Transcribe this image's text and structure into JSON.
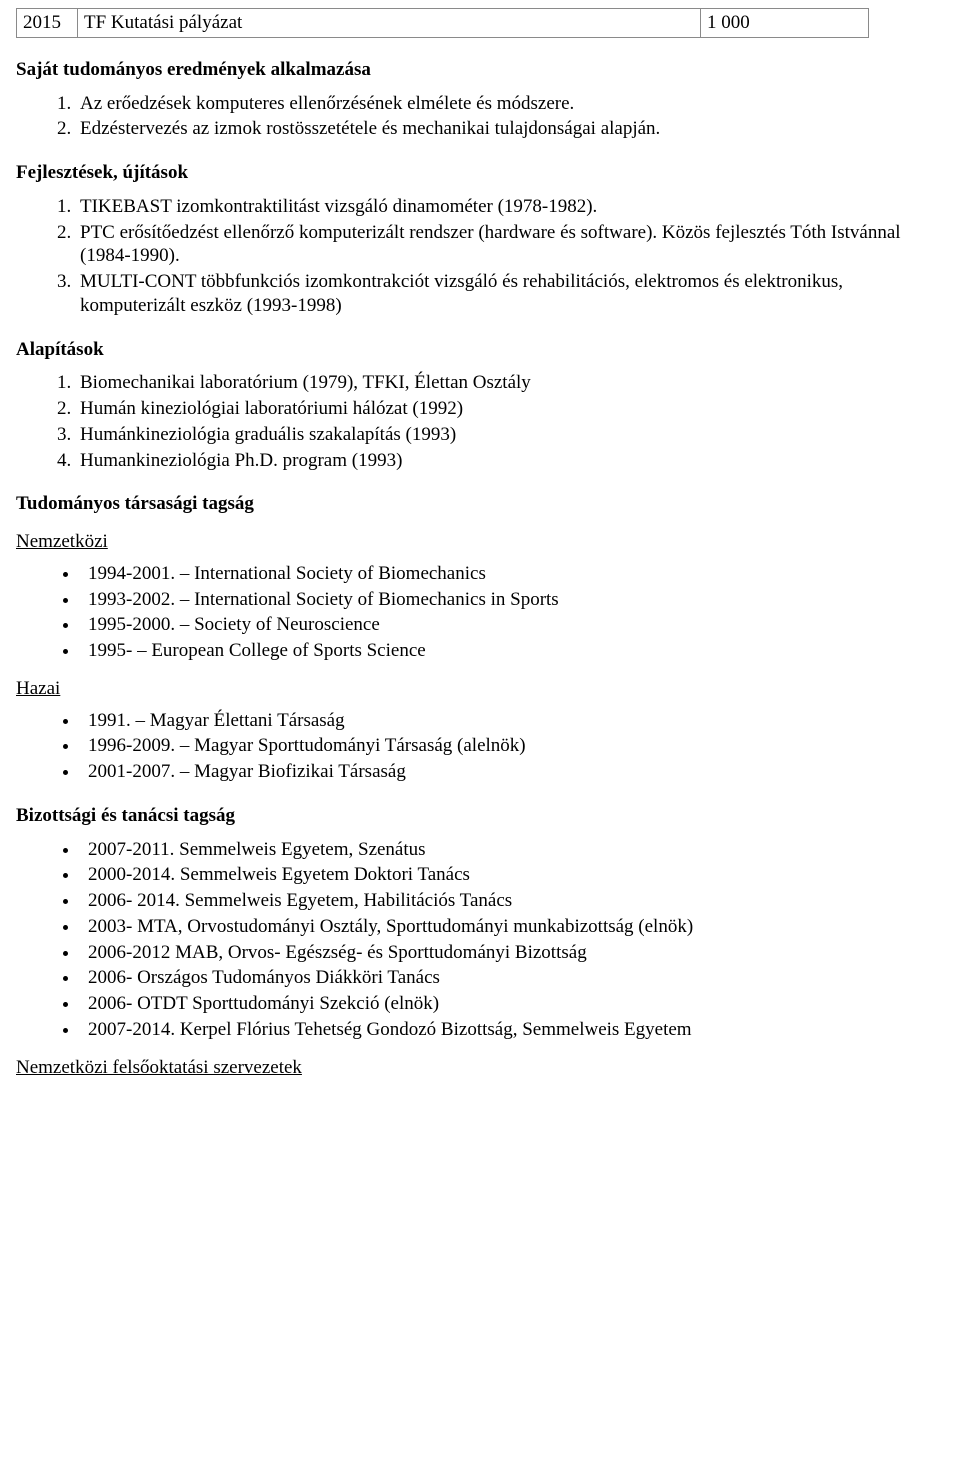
{
  "grant_table": {
    "year": "2015",
    "title": "TF Kutatási pályázat",
    "amount": "1 000"
  },
  "sections": {
    "results_title": "Saját tudományos eredmények alkalmazása",
    "results_items": [
      "Az erőedzések komputeres ellenőrzésének elmélete és módszere.",
      "Edzéstervezés az izmok rostösszetétele és mechanikai tulajdonságai alapján."
    ],
    "developments_title": "Fejlesztések, újítások",
    "developments_items": [
      "TIKEBAST izomkontraktilitást vizsgáló dinamométer (1978-1982).",
      "PTC erősítőedzést ellenőrző komputerizált rendszer (hardware és software). Közös fejlesztés Tóth Istvánnal (1984-1990).",
      "MULTI-CONT többfunkciós izomkontrakciót vizsgáló és rehabilitációs, elektromos és elektronikus, komputerizált eszköz (1993-1998)"
    ],
    "foundations_title": "Alapítások",
    "foundations_items": [
      "Biomechanikai laboratórium (1979), TFKI, Élettan Osztály",
      "Humán kineziológiai laboratóriumi hálózat (1992)",
      "Humánkineziológia graduális szakalapítás (1993)",
      "Humankineziológia Ph.D. program (1993)"
    ],
    "membership_title": "Tudományos társasági tagság",
    "intl_label": "Nemzetközi",
    "intl_items": [
      "1994-2001. – International Society of Biomechanics",
      "1993-2002. – International Society of Biomechanics in Sports",
      "1995-2000. – Society of Neuroscience",
      "1995- – European College of Sports Science"
    ],
    "domestic_label": "Hazai",
    "domestic_items": [
      "1991. – Magyar Élettani Társaság",
      "1996-2009. – Magyar Sporttudományi Társaság (alelnök)",
      "2001-2007. – Magyar Biofizikai Társaság"
    ],
    "committee_title": "Bizottsági és tanácsi tagság",
    "committee_items": [
      "2007-2011. Semmelweis Egyetem, Szenátus",
      "2000-2014. Semmelweis Egyetem Doktori Tanács",
      "2006- 2014. Semmelweis Egyetem, Habilitációs Tanács",
      "2003- MTA, Orvostudományi Osztály, Sporttudományi munkabizottság (elnök)",
      "2006-2012 MAB, Orvos- Egészség- és Sporttudományi Bizottság",
      "2006- Országos Tudományos Diákköri Tanács",
      "2006- OTDT Sporttudományi Szekció (elnök)",
      "2007-2014. Kerpel Flórius Tehetség Gondozó Bizottság, Semmelweis Egyetem"
    ],
    "intl_edu_label": "Nemzetközi felsőoktatási szervezetek"
  }
}
